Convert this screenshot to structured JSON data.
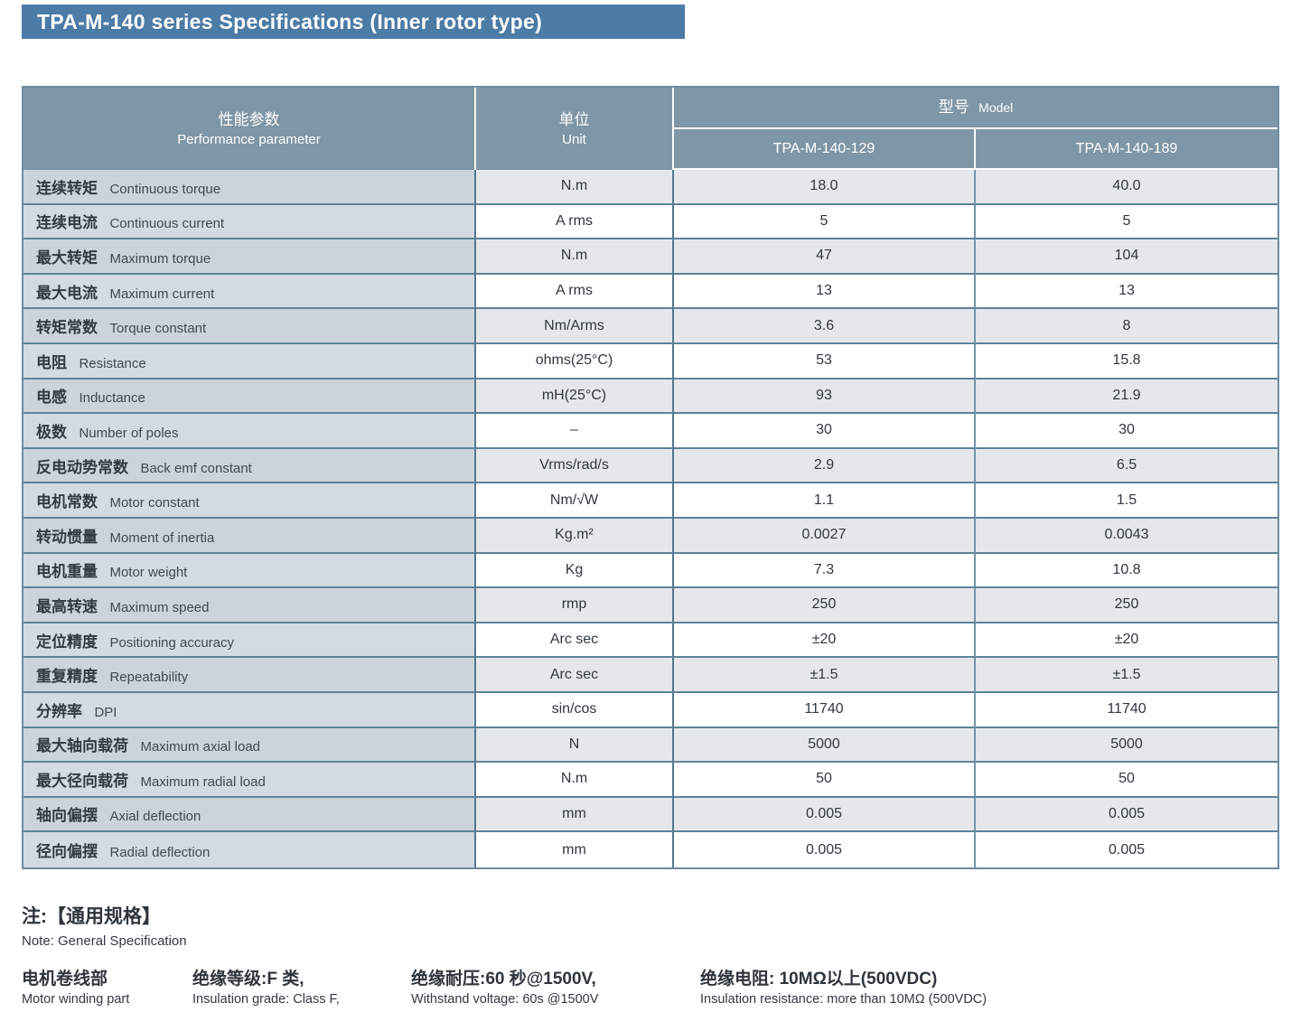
{
  "page": {
    "title": "TPA-M-140 series Specifications (Inner rotor type)"
  },
  "colors": {
    "title_bar": "#4C7BA6",
    "table_header": "#7E96A6",
    "param_column": "#CBD4DC",
    "row_alt": "#E5E8EB",
    "row_white": "#FFFFFF",
    "grid_line": "#5E8399"
  },
  "table": {
    "header": {
      "param_zh": "性能参数",
      "param_en": "Performance parameter",
      "unit_zh": "单位",
      "unit_en": "Unit",
      "model_zh": "型号",
      "model_en": "Model",
      "models": [
        "TPA-M-140-129",
        "TPA-M-140-189"
      ]
    },
    "rows": [
      {
        "param_zh": "连续转矩",
        "param_en": "Continuous torque",
        "unit": "N.m",
        "values": [
          "18.0",
          "40.0"
        ]
      },
      {
        "param_zh": "连续电流",
        "param_en": "Continuous current",
        "unit": "A rms",
        "values": [
          "5",
          "5"
        ]
      },
      {
        "param_zh": "最大转矩",
        "param_en": "Maximum torque",
        "unit": "N.m",
        "values": [
          "47",
          "104"
        ]
      },
      {
        "param_zh": "最大电流",
        "param_en": "Maximum current",
        "unit": "A rms",
        "values": [
          "13",
          "13"
        ]
      },
      {
        "param_zh": "转矩常数",
        "param_en": "Torque constant",
        "unit": "Nm/Arms",
        "values": [
          "3.6",
          "8"
        ]
      },
      {
        "param_zh": "电阻",
        "param_en": "Resistance",
        "unit": "ohms(25°C)",
        "values": [
          "53",
          "15.8"
        ]
      },
      {
        "param_zh": "电感",
        "param_en": "Inductance",
        "unit": "mH(25°C)",
        "values": [
          "93",
          "21.9"
        ]
      },
      {
        "param_zh": "极数",
        "param_en": "Number of poles",
        "unit": "–",
        "values": [
          "30",
          "30"
        ]
      },
      {
        "param_zh": "反电动势常数",
        "param_en": "Back emf constant",
        "unit": "Vrms/rad/s",
        "values": [
          "2.9",
          "6.5"
        ]
      },
      {
        "param_zh": "电机常数",
        "param_en": "Motor constant",
        "unit": "Nm/√W",
        "values": [
          "1.1",
          "1.5"
        ]
      },
      {
        "param_zh": "转动惯量",
        "param_en": "Moment of inertia",
        "unit": "Kg.m²",
        "values": [
          "0.0027",
          "0.0043"
        ]
      },
      {
        "param_zh": "电机重量",
        "param_en": "Motor weight",
        "unit": "Kg",
        "values": [
          "7.3",
          "10.8"
        ]
      },
      {
        "param_zh": "最高转速",
        "param_en": "Maximum speed",
        "unit": "rmp",
        "values": [
          "250",
          "250"
        ]
      },
      {
        "param_zh": "定位精度",
        "param_en": "Positioning accuracy",
        "unit": "Arc sec",
        "values": [
          "±20",
          "±20"
        ]
      },
      {
        "param_zh": "重复精度",
        "param_en": "Repeatability",
        "unit": "Arc sec",
        "values": [
          "±1.5",
          "±1.5"
        ]
      },
      {
        "param_zh": "分辨率",
        "param_en": "DPI",
        "unit": "sin/cos",
        "values": [
          "11740",
          "11740"
        ]
      },
      {
        "param_zh": "最大轴向载荷",
        "param_en": "Maximum axial load",
        "unit": "N",
        "values": [
          "5000",
          "5000"
        ]
      },
      {
        "param_zh": "最大径向载荷",
        "param_en": "Maximum radial load",
        "unit": "N.m",
        "values": [
          "50",
          "50"
        ]
      },
      {
        "param_zh": "轴向偏摆",
        "param_en": "Axial deflection",
        "unit": "mm",
        "values": [
          "0.005",
          "0.005"
        ]
      },
      {
        "param_zh": "径向偏摆",
        "param_en": "Radial deflection",
        "unit": "mm",
        "values": [
          "0.005",
          "0.005"
        ]
      }
    ]
  },
  "notes": {
    "title_zh": "注:【通用规格】",
    "title_en": "Note: General Specification",
    "items": [
      {
        "zh": "电机卷线部",
        "en": "Motor winding part"
      },
      {
        "zh": "绝缘等级:F 类,",
        "en": "Insulation grade: Class F,"
      },
      {
        "zh": "绝缘耐压:60 秒@1500V,",
        "en": "Withstand voltage: 60s @1500V"
      },
      {
        "zh": "绝缘电阻: 10MΩ以上(500VDC)",
        "en": "Insulation resistance: more than 10MΩ (500VDC)"
      }
    ]
  }
}
